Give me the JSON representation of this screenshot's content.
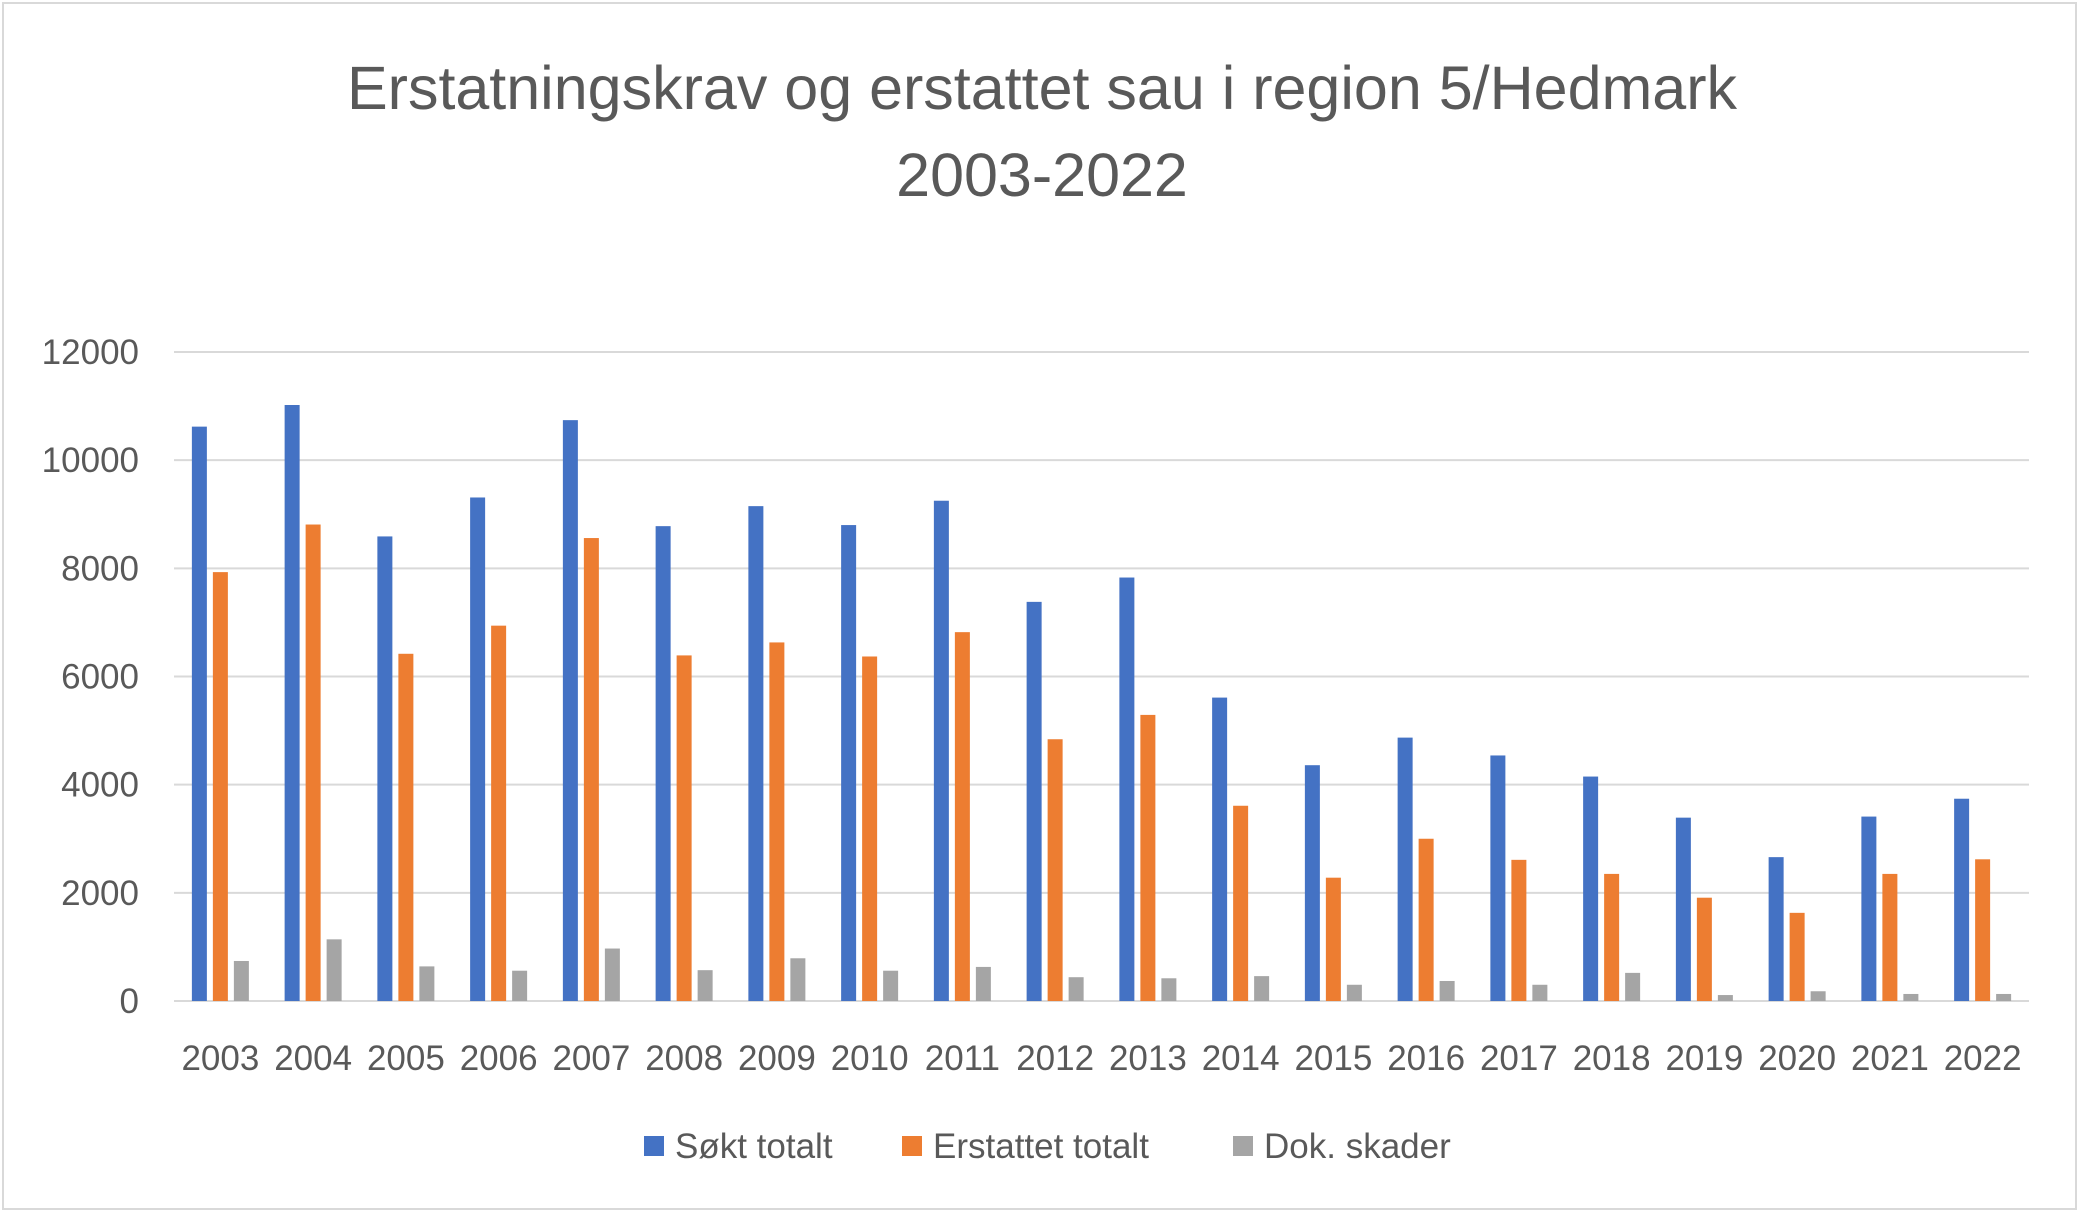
{
  "chart_data": {
    "type": "bar",
    "title": "Erstatningskrav og erstattet sau i region 5/Hedmark",
    "subtitle": "2003-2022",
    "xlabel": "",
    "ylabel": "",
    "ylim": [
      0,
      12000
    ],
    "yticks": [
      "0",
      "2000",
      "4000",
      "6000",
      "8000",
      "10000",
      "12000"
    ],
    "grid": true,
    "legend_position": "bottom",
    "categories": [
      "2003",
      "2004",
      "2005",
      "2006",
      "2007",
      "2008",
      "2009",
      "2010",
      "2011",
      "2012",
      "2013",
      "2014",
      "2015",
      "2016",
      "2017",
      "2018",
      "2019",
      "2020",
      "2021",
      "2022"
    ],
    "series": [
      {
        "name": "Søkt totalt",
        "color": "#4472c4",
        "values": [
          10620,
          11020,
          8590,
          9310,
          10740,
          8780,
          9150,
          8800,
          9250,
          7380,
          7830,
          5610,
          4360,
          4870,
          4540,
          4150,
          3390,
          2660,
          3410,
          3740
        ]
      },
      {
        "name": "Erstattet totalt",
        "color": "#ed7d31",
        "values": [
          7930,
          8810,
          6420,
          6940,
          8560,
          6390,
          6630,
          6370,
          6820,
          4840,
          5290,
          3610,
          2280,
          3000,
          2610,
          2350,
          1910,
          1630,
          2350,
          2620
        ]
      },
      {
        "name": "Dok. skader",
        "color": "#a5a5a5",
        "values": [
          740,
          1140,
          640,
          560,
          970,
          570,
          790,
          560,
          630,
          440,
          420,
          460,
          300,
          370,
          300,
          520,
          110,
          180,
          130,
          130
        ]
      }
    ]
  }
}
